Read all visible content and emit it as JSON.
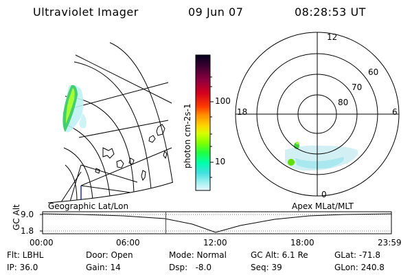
{
  "header": {
    "instrument": "Ultraviolet Imager",
    "date": "09 Jun 07",
    "time": "08:28:53 UT"
  },
  "colorbar": {
    "unit_label": "photon cm-2s-1",
    "ticks": [
      "100",
      "10"
    ],
    "colors": [
      "#00001a",
      "#3a0030",
      "#8a0040",
      "#d40020",
      "#ff3a00",
      "#ff8a00",
      "#ffd200",
      "#d8ff00",
      "#80ff00",
      "#20ff40",
      "#00ffb0",
      "#40e0e0",
      "#a0f0f0",
      "#e8f8ff"
    ]
  },
  "polar_plot": {
    "mlt_labels": {
      "top": "12",
      "left": "18",
      "right": "6",
      "bottom": "0"
    },
    "lat_labels": [
      "60",
      "70",
      "80"
    ]
  },
  "projection_labels": {
    "left": "Geographic Lat/Lon",
    "right": "Apex MLat/MLT"
  },
  "altitude_plot": {
    "axis_label": "GC Alt",
    "y_ticks": [
      "9.0",
      "1.8"
    ],
    "x_ticks": [
      "00:00",
      "06:00",
      "12:00",
      "18:00",
      "23:59"
    ],
    "current_time_marker_hours": 8.48,
    "marker_color": "#ff0000"
  },
  "info": {
    "row1": {
      "flt": "Flt: LBHL",
      "door": "Door: Open",
      "mode": "Mode: Normal",
      "gc_alt": "GC Alt: 6.1 Re",
      "glat": "GLat: -71.8"
    },
    "row2": {
      "ip": "IP: 36.0",
      "gain": "Gain: 14",
      "dsp": "Dsp:   -8.0",
      "seq": "Seq: 39",
      "glon": "GLon: 240.8"
    }
  }
}
